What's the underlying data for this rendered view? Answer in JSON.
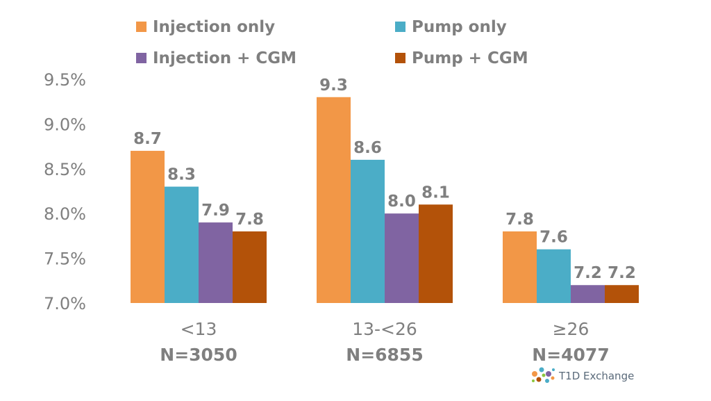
{
  "chart_data": {
    "type": "bar",
    "title": "",
    "xlabel": "",
    "ylabel": "",
    "ylim": [
      7.0,
      9.5
    ],
    "yticks": [
      "9.5%",
      "9.0%",
      "8.5%",
      "8.0%",
      "7.5%",
      "7.0%"
    ],
    "ytick_values": [
      9.5,
      9.0,
      8.5,
      8.0,
      7.5,
      7.0
    ],
    "categories": [
      {
        "label": "<13",
        "n": "N=3050"
      },
      {
        "label": "13-<26",
        "n": "N=6855"
      },
      {
        "label": "≥26",
        "n": "N=4077"
      }
    ],
    "series": [
      {
        "name": "Injection only",
        "color": "#f29747",
        "values": [
          8.7,
          9.3,
          7.8
        ],
        "labels": [
          "8.7",
          "9.3",
          "7.8"
        ]
      },
      {
        "name": "Pump only",
        "color": "#4badc7",
        "values": [
          8.3,
          8.6,
          7.6
        ],
        "labels": [
          "8.3",
          "8.6",
          "7.6"
        ]
      },
      {
        "name": "Injection + CGM",
        "color": "#8064a2",
        "values": [
          7.9,
          8.0,
          7.2
        ],
        "labels": [
          "7.9",
          "8.0",
          "7.2"
        ]
      },
      {
        "name": "Pump + CGM",
        "color": "#b35209",
        "values": [
          7.8,
          8.1,
          7.2
        ],
        "labels": [
          "7.8",
          "8.1",
          "7.2"
        ]
      }
    ],
    "grid": false,
    "legend": "top"
  },
  "logo": {
    "text": "T1D Exchange"
  }
}
